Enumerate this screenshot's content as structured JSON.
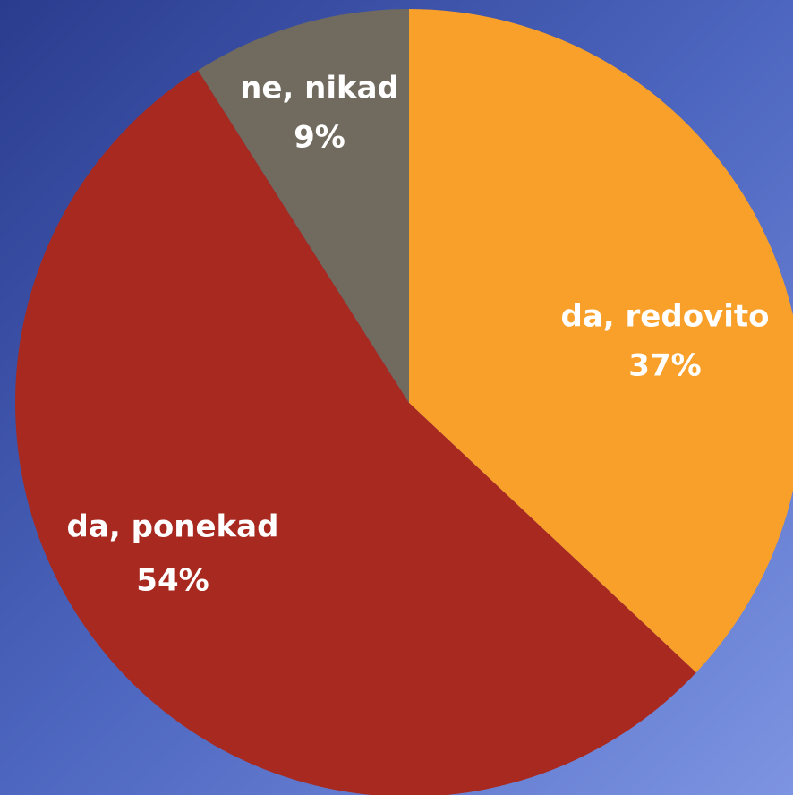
{
  "chart_data": {
    "type": "pie",
    "categories": [
      "da, redovito",
      "da, ponekad",
      "ne, nikad"
    ],
    "values": [
      37,
      54,
      9
    ],
    "value_labels": [
      "37%",
      "54%",
      "9%"
    ],
    "colors": [
      "#f9a02a",
      "#a8291f",
      "#716a5e"
    ]
  }
}
